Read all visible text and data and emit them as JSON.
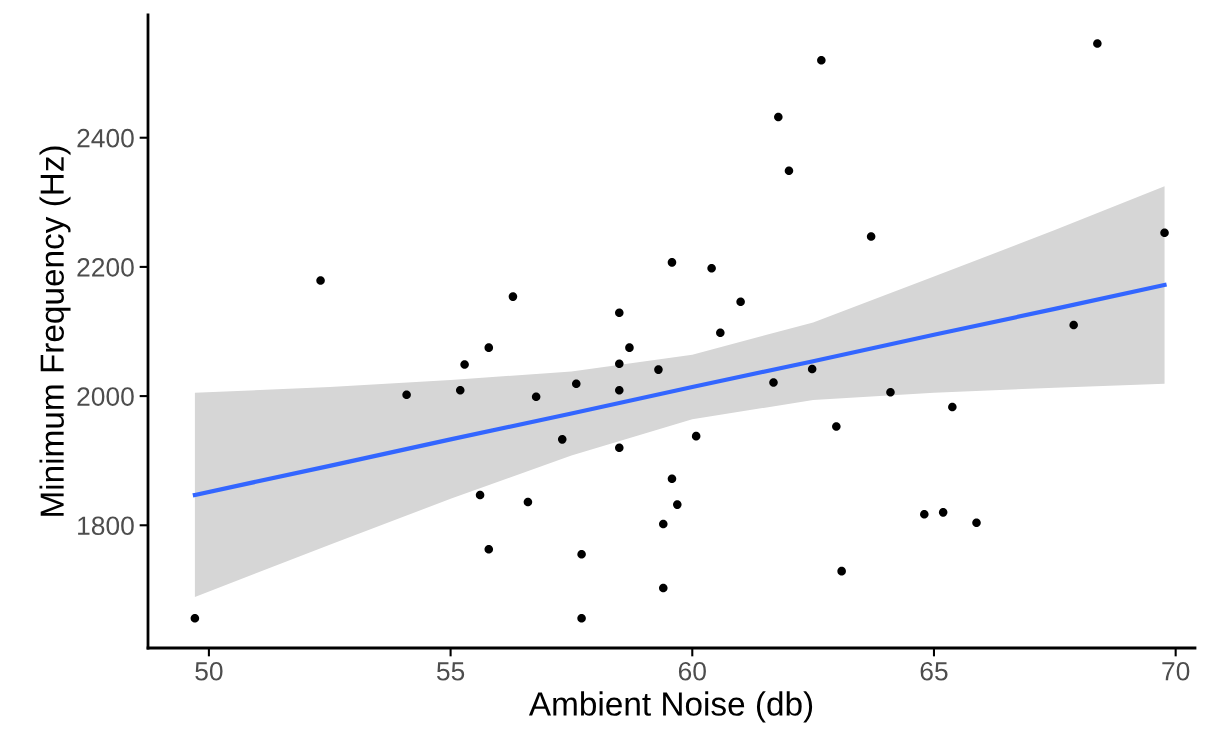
{
  "chart_data": {
    "type": "scatter",
    "xlabel": "Ambient Noise (db)",
    "ylabel": "Minimum Frequency (Hz)",
    "xlim": [
      48.74,
      70.4
    ],
    "ylim": [
      1610,
      2590
    ],
    "xticks": [
      50,
      55,
      60,
      65,
      70
    ],
    "yticks": [
      1800,
      2000,
      2200,
      2400
    ],
    "grid": false,
    "legend": false,
    "series": [
      {
        "marker": "circle",
        "color": "#000000",
        "x": [
          49.71,
          52.31,
          56.29,
          55.79,
          55.29,
          54.09,
          55.2,
          56.77,
          55.61,
          56.6,
          55.79,
          57.31,
          57.6,
          58.49,
          58.7,
          58.49,
          58.49,
          59.3,
          58.49,
          57.71,
          57.71,
          59.4,
          59.4,
          59.69,
          59.58,
          60.08,
          59.58,
          60.4,
          61.0,
          60.58,
          61.68,
          62.48,
          62.98,
          63.09,
          61.78,
          62.0,
          62.67,
          63.7,
          64.1,
          65.38,
          64.8,
          65.19,
          65.88,
          67.89,
          68.38,
          69.77
        ],
        "values": [
          1656,
          2179,
          2154,
          2075,
          2049,
          2002,
          2009,
          1999,
          1847,
          1836,
          1763,
          1933,
          2019,
          2129,
          2075,
          2050,
          2009,
          2041,
          1920,
          1755,
          1656,
          1703,
          1802,
          1832,
          1872,
          1938,
          2207,
          2198,
          2146,
          2098,
          2021,
          2042,
          1953,
          1729,
          2432,
          2349,
          2520,
          2247,
          2006,
          1983,
          1817,
          1820,
          1804,
          2110,
          2546,
          2253
        ]
      },
      {
        "type": "line",
        "marker": "none",
        "color": "#3366ff",
        "line_style": "solid",
        "x": [
          49.71,
          52.5,
          55,
          57.5,
          60,
          62.5,
          65,
          67.5,
          69.77
        ],
        "values": [
          1847,
          1892,
          1933,
          1973,
          2014,
          2054,
          2095,
          2135,
          2172
        ],
        "lower": [
          1689,
          1770,
          1841,
          1908,
          1964,
          1994,
          2005,
          2013,
          2019
        ],
        "upper": [
          2005,
          2014,
          2025,
          2038,
          2064,
          2114,
          2185,
          2257,
          2325
        ]
      }
    ]
  }
}
